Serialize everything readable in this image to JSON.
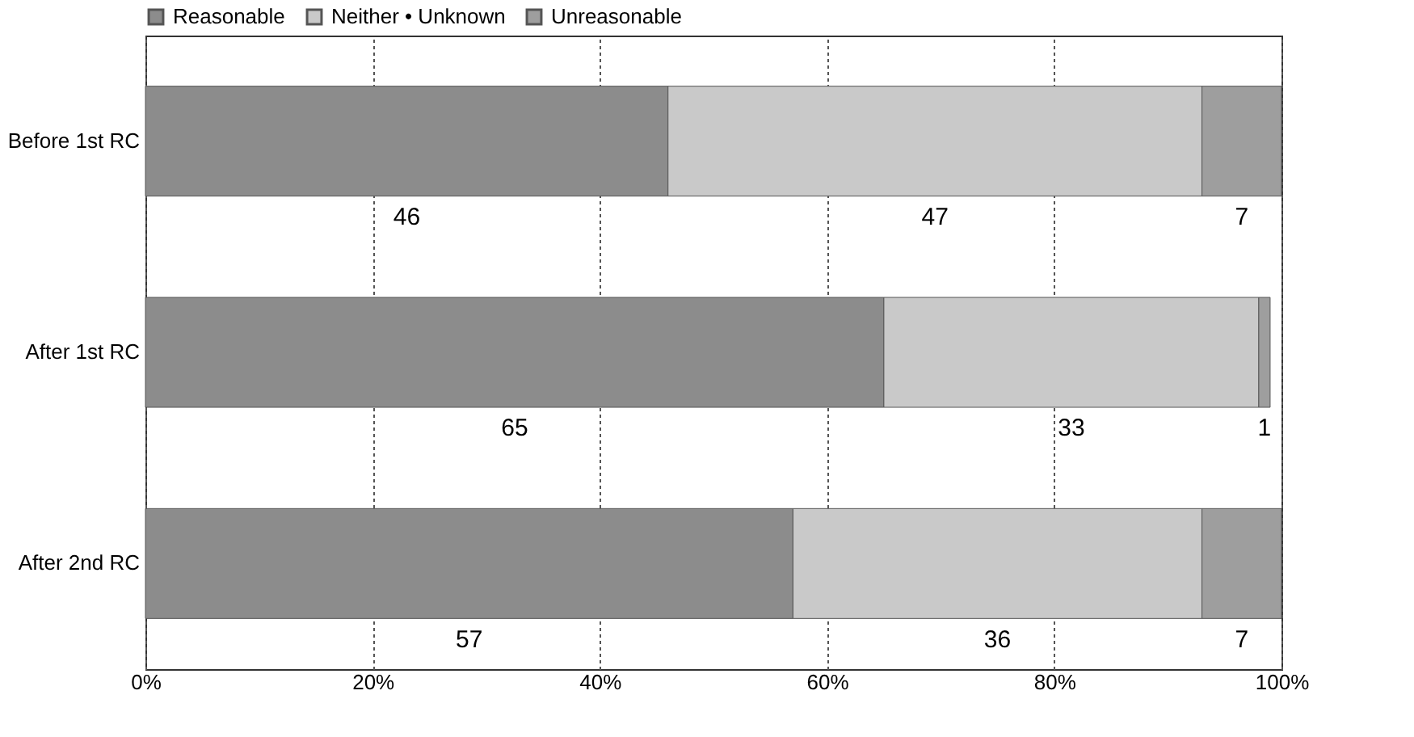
{
  "chart_data": {
    "type": "bar",
    "orientation": "horizontal",
    "stacked": true,
    "categories": [
      "Before 1st RC",
      "After 1st RC",
      "After 2nd RC"
    ],
    "series": [
      {
        "name": "Reasonable",
        "color": "#8c8c8c",
        "values": [
          46,
          65,
          57
        ]
      },
      {
        "name": "Neither • Unknown",
        "color": "#c9c9c9",
        "values": [
          47,
          33,
          36
        ]
      },
      {
        "name": "Unreasonable",
        "color": "#9e9e9e",
        "values": [
          7,
          1,
          7
        ]
      }
    ],
    "xlim": [
      0,
      100
    ],
    "xticks": [
      {
        "value": 0,
        "label": "0%"
      },
      {
        "value": 20,
        "label": "20%"
      },
      {
        "value": 40,
        "label": "40%"
      },
      {
        "value": 60,
        "label": "60%"
      },
      {
        "value": 80,
        "label": "80%"
      },
      {
        "value": 100,
        "label": "100%"
      }
    ],
    "grid": "x",
    "legend": "top",
    "data_labels": true
  }
}
